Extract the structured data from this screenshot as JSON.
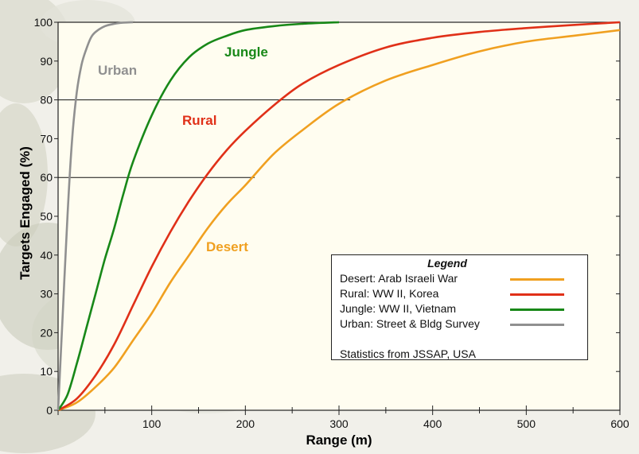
{
  "chart_data": {
    "type": "line",
    "title": "",
    "xlabel": "Range (m)",
    "ylabel": "Targets Engaged (%)",
    "xlim": [
      0,
      600
    ],
    "ylim": [
      0,
      100
    ],
    "x_ticks": [
      100,
      200,
      300,
      400,
      500,
      600
    ],
    "x_tick_labels": [
      "100",
      "200",
      "300",
      "400",
      "500",
      "600"
    ],
    "x_zero_label": "0",
    "y_ticks": [
      0,
      10,
      20,
      30,
      40,
      50,
      60,
      70,
      80,
      90,
      100
    ],
    "y_tick_labels": [
      "0",
      "10",
      "20",
      "30",
      "40",
      "50",
      "60",
      "70",
      "80",
      "90",
      "100"
    ],
    "reference_lines": [
      {
        "y": 80,
        "x_end": 312
      },
      {
        "y": 60,
        "x_end": 210
      }
    ],
    "series": [
      {
        "name": "Desert",
        "label": "Desert",
        "color": "#f0a020",
        "x": [
          0,
          20,
          40,
          60,
          80,
          100,
          120,
          140,
          160,
          180,
          200,
          230,
          260,
          300,
          350,
          400,
          450,
          500,
          550,
          600
        ],
        "y": [
          0,
          2,
          6,
          11,
          18,
          25,
          33,
          40,
          47,
          53,
          58,
          66,
          72,
          79,
          85,
          89,
          92.5,
          95,
          96.5,
          98
        ]
      },
      {
        "name": "Rural",
        "label": "Rural",
        "color": "#e03018",
        "x": [
          0,
          20,
          40,
          60,
          80,
          100,
          120,
          140,
          160,
          180,
          200,
          230,
          260,
          300,
          350,
          400,
          450,
          500,
          550,
          600
        ],
        "y": [
          0,
          3,
          9,
          17,
          27,
          37,
          46,
          54,
          61,
          67,
          72,
          78.5,
          84,
          89,
          93.5,
          96,
          97.5,
          98.5,
          99.3,
          100
        ]
      },
      {
        "name": "Jungle",
        "label": "Jungle",
        "color": "#188818",
        "x": [
          0,
          10,
          20,
          30,
          40,
          50,
          60,
          70,
          80,
          100,
          120,
          140,
          160,
          180,
          200,
          230,
          260,
          300
        ],
        "y": [
          0,
          4,
          12,
          21,
          30,
          39,
          47,
          56,
          64,
          76,
          85,
          91,
          94.5,
          96.5,
          98,
          99,
          99.6,
          100
        ]
      },
      {
        "name": "Urban",
        "label": "Urban",
        "color": "#909090",
        "x": [
          0,
          5,
          10,
          15,
          20,
          25,
          30,
          35,
          40,
          50,
          60,
          70,
          80
        ],
        "y": [
          0,
          25,
          50,
          70,
          82,
          89,
          93,
          96,
          97.5,
          99,
          99.6,
          99.9,
          100
        ]
      }
    ],
    "legend": {
      "title": "Legend",
      "entries": [
        {
          "text": "Desert: Arab Israeli War",
          "color": "#f0a020"
        },
        {
          "text": "Rural: WW II, Korea",
          "color": "#e03018"
        },
        {
          "text": "Jungle: WW II, Vietnam",
          "color": "#188818"
        },
        {
          "text": "Urban: Street & Bldg Survey",
          "color": "#909090"
        }
      ],
      "note": "Statistics from JSSAP, USA",
      "placement": "bottom-right"
    }
  }
}
